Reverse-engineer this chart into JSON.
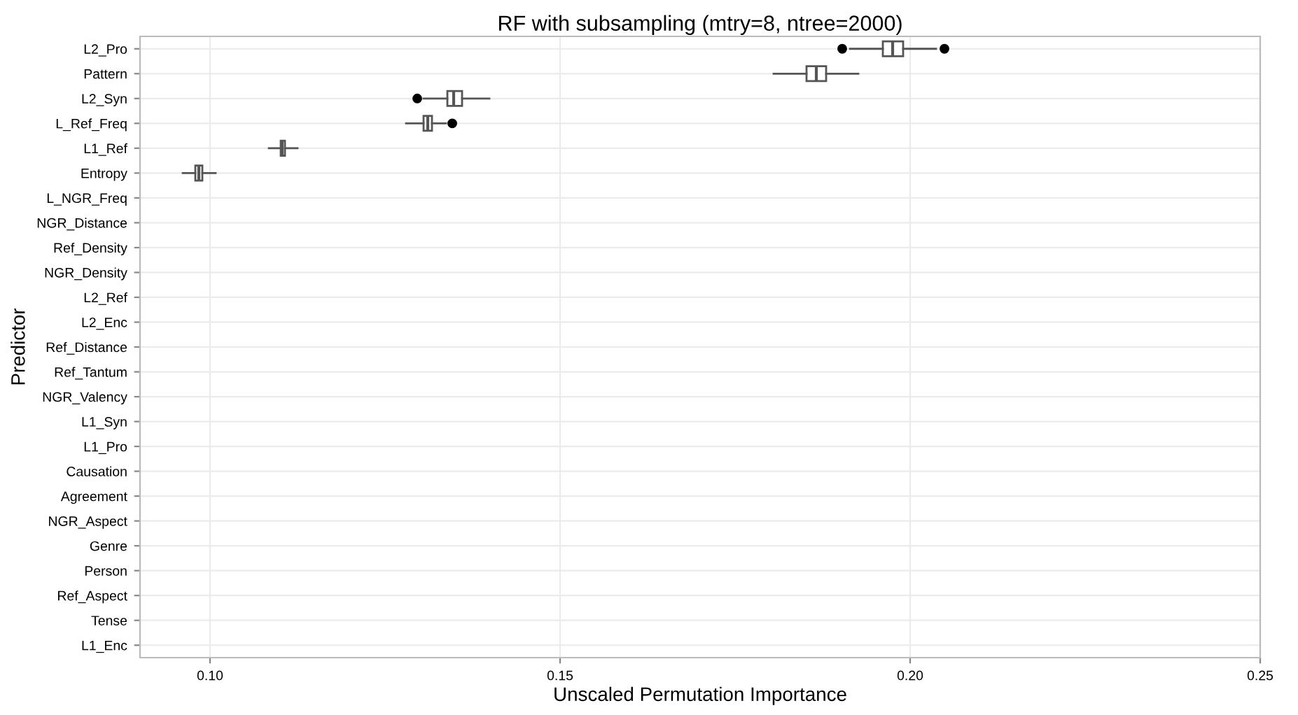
{
  "chart_data": {
    "type": "box",
    "title": "RF with subsampling (mtry=8, ntree=2000)",
    "xlabel": "Unscaled Permutation Importance",
    "ylabel": "Predictor",
    "orientation": "horizontal",
    "categories": [
      "L2_Pro",
      "Pattern",
      "L2_Syn",
      "L_Ref_Freq",
      "L1_Ref",
      "Entropy",
      "L_NGR_Freq",
      "NGR_Distance",
      "Ref_Density",
      "NGR_Density",
      "L2_Ref",
      "L2_Enc",
      "Ref_Distance",
      "Ref_Tantum",
      "NGR_Valency",
      "L1_Syn",
      "L1_Pro",
      "Causation",
      "Agreement",
      "NGR_Aspect",
      "Genre",
      "Person",
      "Ref_Aspect",
      "Tense",
      "L1_Enc"
    ],
    "boxes": [
      {
        "low": 0.1914,
        "q1": 0.1961,
        "median": 0.1975,
        "q3": 0.199,
        "high": 0.2037,
        "outliers": [
          0.1903,
          0.2049
        ]
      },
      {
        "low": 0.1805,
        "q1": 0.1852,
        "median": 0.1866,
        "q3": 0.188,
        "high": 0.1926
      },
      {
        "low": 0.1305,
        "q1": 0.1339,
        "median": 0.1348,
        "q3": 0.136,
        "high": 0.1399,
        "outliers": [
          0.1296
        ]
      },
      {
        "low": 0.128,
        "q1": 0.1305,
        "median": 0.1311,
        "q3": 0.1317,
        "high": 0.1337,
        "outliers": [
          0.1346
        ]
      },
      {
        "low": 0.1084,
        "q1": 0.1101,
        "median": 0.1103,
        "q3": 0.1107,
        "high": 0.1125
      },
      {
        "low": 0.0961,
        "q1": 0.0979,
        "median": 0.0984,
        "q3": 0.0989,
        "high": 0.1008
      },
      null,
      null,
      null,
      null,
      null,
      null,
      null,
      null,
      null,
      null,
      null,
      null,
      null,
      null,
      null,
      null,
      null,
      null,
      null
    ],
    "xlim": [
      0.09,
      0.25
    ],
    "xticks": [
      {
        "value": 0.1,
        "label": "0.10"
      },
      {
        "value": 0.15,
        "label": "0.15"
      },
      {
        "value": 0.2,
        "label": "0.20"
      },
      {
        "value": 0.25,
        "label": "0.25"
      }
    ],
    "grid": true
  }
}
